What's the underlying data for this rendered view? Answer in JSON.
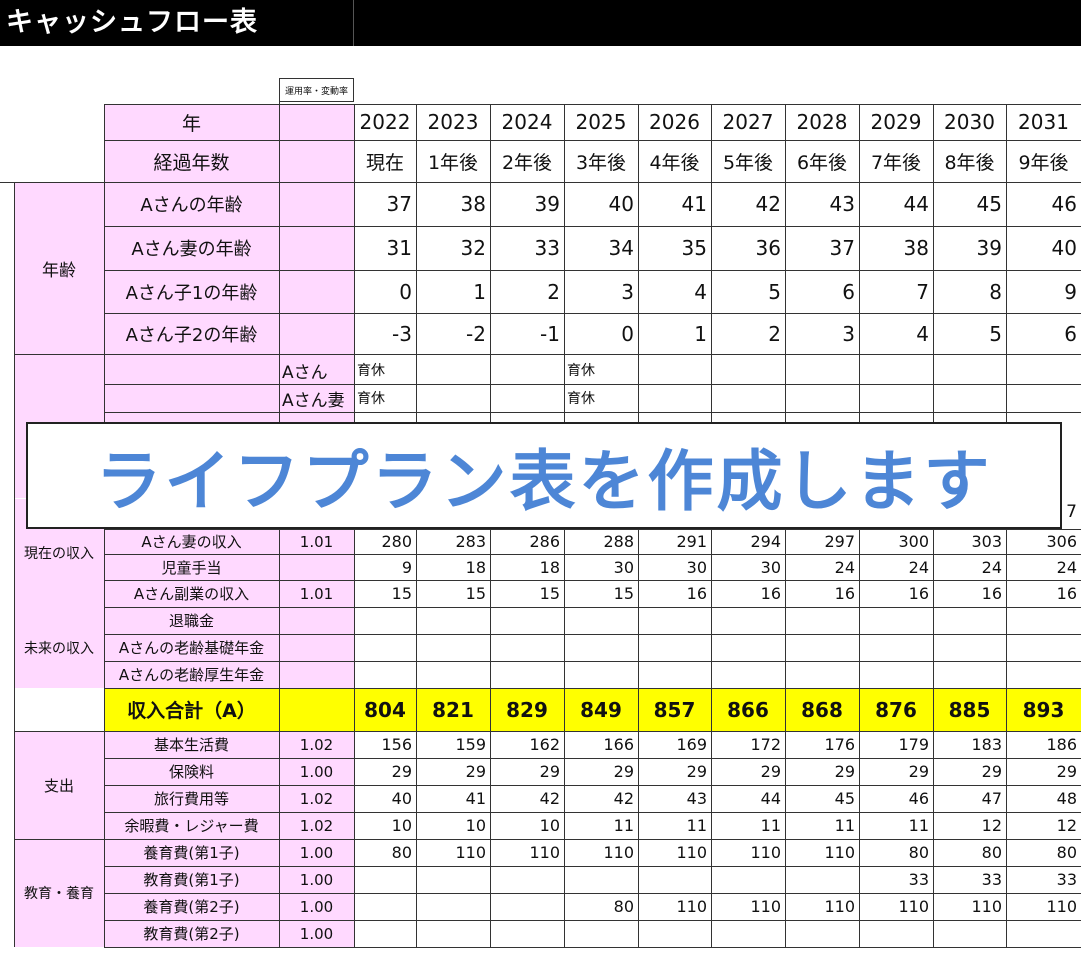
{
  "title": "キャッシュフロー表",
  "header_note": "運用率・変動率",
  "year_label": "年",
  "elapsed_label": "経過年数",
  "years": [
    "2022",
    "2023",
    "2024",
    "2025",
    "2026",
    "2027",
    "2028",
    "2029",
    "2030",
    "2031"
  ],
  "elapsed": [
    "現在",
    "1年後",
    "2年後",
    "3年後",
    "4年後",
    "5年後",
    "6年後",
    "7年後",
    "8年後",
    "9年後"
  ],
  "age_group": "年齢",
  "age_rows": [
    {
      "label": "Aさんの年齢",
      "values": [
        "37",
        "38",
        "39",
        "40",
        "41",
        "42",
        "43",
        "44",
        "45",
        "46"
      ]
    },
    {
      "label": "Aさん妻の年齢",
      "values": [
        "31",
        "32",
        "33",
        "34",
        "35",
        "36",
        "37",
        "38",
        "39",
        "40"
      ]
    },
    {
      "label": "Aさん子1の年齢",
      "values": [
        "0",
        "1",
        "2",
        "3",
        "4",
        "5",
        "6",
        "7",
        "8",
        "9"
      ]
    },
    {
      "label": "Aさん子2の年齢",
      "values": [
        "-3",
        "-2",
        "-1",
        "0",
        "1",
        "2",
        "3",
        "4",
        "5",
        "6"
      ]
    }
  ],
  "event_rows": [
    {
      "label": "Aさん",
      "values": [
        "育休",
        "",
        "",
        "育休",
        "",
        "",
        "",
        "",
        "",
        ""
      ]
    },
    {
      "label": "Aさん妻",
      "values": [
        "育休",
        "",
        "",
        "育休",
        "",
        "",
        "",
        "",
        "",
        ""
      ]
    }
  ],
  "partial_value": "7",
  "income_current_group": "現在の収入",
  "income_future_group": "未来の収入",
  "income_rows": [
    {
      "label": "Aさん妻の収入",
      "rate": "1.01",
      "values": [
        "280",
        "283",
        "286",
        "288",
        "291",
        "294",
        "297",
        "300",
        "303",
        "306"
      ]
    },
    {
      "label": "児童手当",
      "rate": "",
      "values": [
        "9",
        "18",
        "18",
        "30",
        "30",
        "30",
        "24",
        "24",
        "24",
        "24"
      ]
    },
    {
      "label": "Aさん副業の収入",
      "rate": "1.01",
      "values": [
        "15",
        "15",
        "15",
        "15",
        "16",
        "16",
        "16",
        "16",
        "16",
        "16"
      ]
    },
    {
      "label": "退職金",
      "rate": "",
      "values": [
        "",
        "",
        "",
        "",
        "",
        "",
        "",
        "",
        "",
        ""
      ]
    },
    {
      "label": "Aさんの老齢基礎年金",
      "rate": "",
      "values": [
        "",
        "",
        "",
        "",
        "",
        "",
        "",
        "",
        "",
        ""
      ]
    },
    {
      "label": "Aさんの老齢厚生年金",
      "rate": "",
      "values": [
        "",
        "",
        "",
        "",
        "",
        "",
        "",
        "",
        "",
        ""
      ]
    }
  ],
  "income_total": {
    "label": "収入合計（A）",
    "values": [
      "804",
      "821",
      "829",
      "849",
      "857",
      "866",
      "868",
      "876",
      "885",
      "893"
    ]
  },
  "expense_group": "支出",
  "expense_rows": [
    {
      "label": "基本生活費",
      "rate": "1.02",
      "values": [
        "156",
        "159",
        "162",
        "166",
        "169",
        "172",
        "176",
        "179",
        "183",
        "186"
      ]
    },
    {
      "label": "保険料",
      "rate": "1.00",
      "values": [
        "29",
        "29",
        "29",
        "29",
        "29",
        "29",
        "29",
        "29",
        "29",
        "29"
      ]
    },
    {
      "label": "旅行費用等",
      "rate": "1.02",
      "values": [
        "40",
        "41",
        "42",
        "42",
        "43",
        "44",
        "45",
        "46",
        "47",
        "48"
      ]
    },
    {
      "label": "余暇費・レジャー費",
      "rate": "1.02",
      "values": [
        "10",
        "10",
        "10",
        "11",
        "11",
        "11",
        "11",
        "11",
        "12",
        "12"
      ]
    }
  ],
  "education_group": "教育・養育",
  "education_rows": [
    {
      "label": "養育費(第1子)",
      "rate": "1.00",
      "values": [
        "80",
        "110",
        "110",
        "110",
        "110",
        "110",
        "110",
        "80",
        "80",
        "80"
      ]
    },
    {
      "label": "教育費(第1子)",
      "rate": "1.00",
      "values": [
        "",
        "",
        "",
        "",
        "",
        "",
        "",
        "33",
        "33",
        "33"
      ]
    },
    {
      "label": "養育費(第2子)",
      "rate": "1.00",
      "values": [
        "",
        "",
        "",
        "80",
        "110",
        "110",
        "110",
        "110",
        "110",
        "110"
      ]
    },
    {
      "label": "教育費(第2子)",
      "rate": "1.00",
      "values": [
        "",
        "",
        "",
        "",
        "",
        "",
        "",
        "",
        "",
        ""
      ]
    }
  ],
  "banner_text": "ライフプラン表を作成します",
  "colors": {
    "label_bg": "#ffd9ff",
    "total_bg": "#ffff00",
    "banner_text": "#4d86d6",
    "title_bg": "#000000"
  }
}
